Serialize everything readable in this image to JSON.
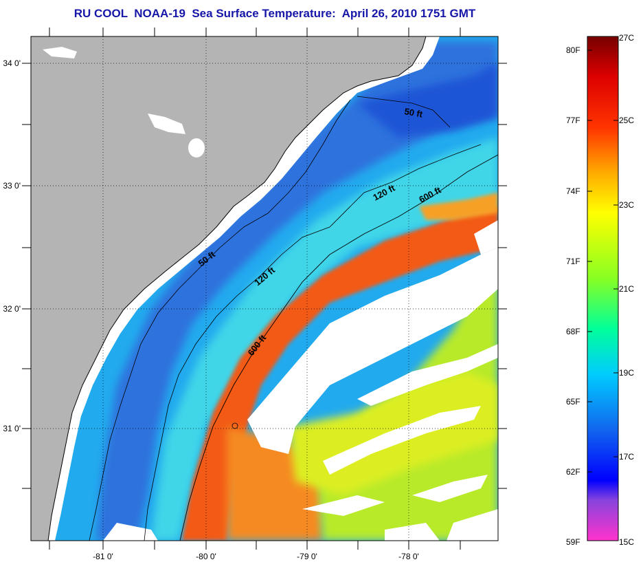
{
  "title": "RU COOL  NOAA-19  Sea Surface Temperature:  April 26, 2010 1751 GMT",
  "map": {
    "lat_labels": [
      "34 0'",
      "33 0'",
      "32 0'",
      "31 0'"
    ],
    "lon_labels": [
      "-81 0'",
      "-80 0'",
      "-79 0'",
      "-78 0'"
    ],
    "isobath_labels": [
      "50 ft",
      "50 ft",
      "120 ft",
      "120 ft",
      "600 ft",
      "600 ft"
    ],
    "colors": {
      "land": "#b4b4b4",
      "cloud": "#ffffff",
      "cold": "#2266dd",
      "cool": "#22aaee",
      "cyan": "#33ddee",
      "warm_yellow": "#ddee22",
      "yellow_green": "#aaee33",
      "orange": "#ff6611",
      "red_orange": "#ee4400"
    }
  },
  "colorbar": {
    "fahrenheit_labels": [
      "80F",
      "77F",
      "74F",
      "71F",
      "68F",
      "65F",
      "62F",
      "59F"
    ],
    "celsius_labels": [
      "27C",
      "25C",
      "23C",
      "21C",
      "19C",
      "17C",
      "15C"
    ]
  }
}
